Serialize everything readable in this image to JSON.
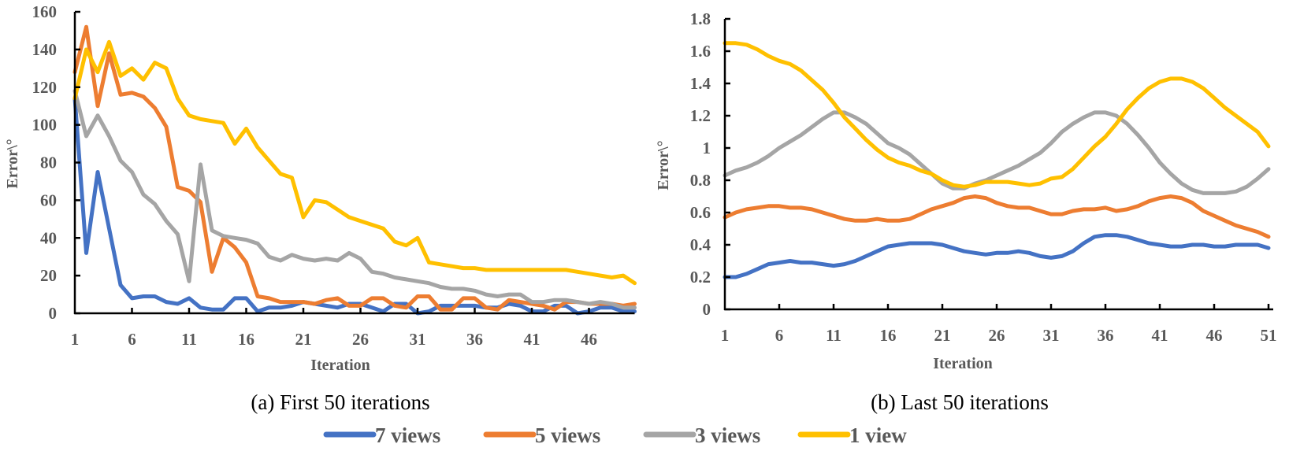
{
  "figure": {
    "legend": [
      {
        "name": "7 views",
        "color": "#4472C4"
      },
      {
        "name": "5 views",
        "color": "#ED7D31"
      },
      {
        "name": "3 views",
        "color": "#A5A5A5"
      },
      {
        "name": "1 view",
        "color": "#FFC000"
      }
    ],
    "legend_placement": "bottom-center"
  },
  "chart_data": [
    {
      "type": "line",
      "title": "(a) First 50 iterations",
      "xlabel": "Iteration",
      "ylabel": "Error\\°",
      "xlim": [
        1,
        50
      ],
      "ylim": [
        0,
        160
      ],
      "xticks": [
        1,
        6,
        11,
        16,
        21,
        26,
        31,
        36,
        41,
        46
      ],
      "yticks": [
        0,
        20,
        40,
        60,
        80,
        100,
        120,
        140,
        160
      ],
      "grid": false,
      "x": [
        1,
        2,
        3,
        4,
        5,
        6,
        7,
        8,
        9,
        10,
        11,
        12,
        13,
        14,
        15,
        16,
        17,
        18,
        19,
        20,
        21,
        22,
        23,
        24,
        25,
        26,
        27,
        28,
        29,
        30,
        31,
        32,
        33,
        34,
        35,
        36,
        37,
        38,
        39,
        40,
        41,
        42,
        43,
        44,
        45,
        46,
        47,
        48,
        49,
        50
      ],
      "series": [
        {
          "name": "7 views",
          "color": "#4472C4",
          "values": [
            114,
            32,
            75,
            45,
            15,
            8,
            9,
            9,
            6,
            5,
            8,
            3,
            2,
            2,
            8,
            8,
            1,
            3,
            3,
            4,
            6,
            5,
            4,
            3,
            5,
            5,
            3,
            1,
            5,
            5,
            0,
            1,
            4,
            4,
            4,
            4,
            3,
            3,
            5,
            4,
            1,
            1,
            4,
            4,
            0,
            1,
            3,
            3,
            1,
            1
          ]
        },
        {
          "name": "5 views",
          "color": "#ED7D31",
          "values": [
            128,
            152,
            110,
            138,
            116,
            117,
            115,
            109,
            99,
            67,
            65,
            59,
            22,
            40,
            35,
            27,
            9,
            8,
            6,
            6,
            6,
            5,
            7,
            8,
            4,
            4,
            8,
            8,
            4,
            3,
            9,
            9,
            2,
            2,
            8,
            8,
            3,
            2,
            7,
            6,
            5,
            4,
            2,
            6,
            6,
            5,
            5,
            5,
            4,
            5
          ]
        },
        {
          "name": "3 views",
          "color": "#A5A5A5",
          "values": [
            118,
            94,
            105,
            94,
            81,
            75,
            63,
            58,
            49,
            42,
            17,
            79,
            44,
            41,
            40,
            39,
            37,
            30,
            28,
            31,
            29,
            28,
            29,
            28,
            32,
            29,
            22,
            21,
            19,
            18,
            17,
            16,
            14,
            13,
            13,
            12,
            10,
            9,
            10,
            10,
            6,
            6,
            7,
            7,
            6,
            5,
            6,
            5,
            3,
            3
          ]
        },
        {
          "name": "1 view",
          "color": "#FFC000",
          "values": [
            114,
            140,
            128,
            144,
            126,
            130,
            124,
            133,
            130,
            114,
            105,
            103,
            102,
            101,
            90,
            98,
            88,
            81,
            74,
            72,
            51,
            60,
            59,
            55,
            51,
            49,
            47,
            45,
            38,
            36,
            40,
            27,
            26,
            25,
            24,
            24,
            23,
            23,
            23,
            23,
            23,
            23,
            23,
            23,
            22,
            21,
            20,
            19,
            20,
            16
          ]
        }
      ]
    },
    {
      "type": "line",
      "title": "(b) Last 50 iterations",
      "xlabel": "Iteration",
      "ylabel": "Error\\°",
      "xlim": [
        1,
        51
      ],
      "ylim": [
        0,
        1.8
      ],
      "xticks": [
        1,
        6,
        11,
        16,
        21,
        26,
        31,
        36,
        41,
        46,
        51
      ],
      "yticks": [
        0,
        0.2,
        0.4,
        0.6,
        0.8,
        1,
        1.2,
        1.4,
        1.6,
        1.8
      ],
      "ytick_labels": [
        "0",
        "0.2",
        "0.4",
        "0.6",
        "0.8",
        "1",
        "1.2",
        "1.4",
        "1.6",
        "1.8"
      ],
      "grid": false,
      "x": [
        1,
        2,
        3,
        4,
        5,
        6,
        7,
        8,
        9,
        10,
        11,
        12,
        13,
        14,
        15,
        16,
        17,
        18,
        19,
        20,
        21,
        22,
        23,
        24,
        25,
        26,
        27,
        28,
        29,
        30,
        31,
        32,
        33,
        34,
        35,
        36,
        37,
        38,
        39,
        40,
        41,
        42,
        43,
        44,
        45,
        46,
        47,
        48,
        49,
        50,
        51
      ],
      "series": [
        {
          "name": "7 views",
          "color": "#4472C4",
          "values": [
            0.2,
            0.2,
            0.22,
            0.25,
            0.28,
            0.29,
            0.3,
            0.29,
            0.29,
            0.28,
            0.27,
            0.28,
            0.3,
            0.33,
            0.36,
            0.39,
            0.4,
            0.41,
            0.41,
            0.41,
            0.4,
            0.38,
            0.36,
            0.35,
            0.34,
            0.35,
            0.35,
            0.36,
            0.35,
            0.33,
            0.32,
            0.33,
            0.36,
            0.41,
            0.45,
            0.46,
            0.46,
            0.45,
            0.43,
            0.41,
            0.4,
            0.39,
            0.39,
            0.4,
            0.4,
            0.39,
            0.39,
            0.4,
            0.4,
            0.4,
            0.38
          ]
        },
        {
          "name": "5 views",
          "color": "#ED7D31",
          "values": [
            0.57,
            0.6,
            0.62,
            0.63,
            0.64,
            0.64,
            0.63,
            0.63,
            0.62,
            0.6,
            0.58,
            0.56,
            0.55,
            0.55,
            0.56,
            0.55,
            0.55,
            0.56,
            0.59,
            0.62,
            0.64,
            0.66,
            0.69,
            0.7,
            0.69,
            0.66,
            0.64,
            0.63,
            0.63,
            0.61,
            0.59,
            0.59,
            0.61,
            0.62,
            0.62,
            0.63,
            0.61,
            0.62,
            0.64,
            0.67,
            0.69,
            0.7,
            0.69,
            0.66,
            0.61,
            0.58,
            0.55,
            0.52,
            0.5,
            0.48,
            0.45
          ]
        },
        {
          "name": "3 views",
          "color": "#A5A5A5",
          "values": [
            0.83,
            0.86,
            0.88,
            0.91,
            0.95,
            1.0,
            1.04,
            1.08,
            1.13,
            1.18,
            1.22,
            1.22,
            1.19,
            1.15,
            1.09,
            1.03,
            1.0,
            0.96,
            0.9,
            0.84,
            0.78,
            0.75,
            0.75,
            0.78,
            0.8,
            0.83,
            0.86,
            0.89,
            0.93,
            0.97,
            1.03,
            1.1,
            1.15,
            1.19,
            1.22,
            1.22,
            1.2,
            1.15,
            1.08,
            1.0,
            0.91,
            0.84,
            0.78,
            0.74,
            0.72,
            0.72,
            0.72,
            0.73,
            0.76,
            0.81,
            0.87
          ]
        },
        {
          "name": "1 view",
          "color": "#FFC000",
          "values": [
            1.65,
            1.65,
            1.64,
            1.61,
            1.57,
            1.54,
            1.52,
            1.48,
            1.42,
            1.36,
            1.28,
            1.19,
            1.12,
            1.05,
            0.99,
            0.94,
            0.91,
            0.89,
            0.86,
            0.84,
            0.8,
            0.77,
            0.76,
            0.77,
            0.79,
            0.79,
            0.79,
            0.78,
            0.77,
            0.78,
            0.81,
            0.82,
            0.87,
            0.94,
            1.01,
            1.07,
            1.15,
            1.24,
            1.31,
            1.37,
            1.41,
            1.43,
            1.43,
            1.41,
            1.37,
            1.31,
            1.25,
            1.2,
            1.15,
            1.1,
            1.01
          ]
        }
      ]
    }
  ]
}
